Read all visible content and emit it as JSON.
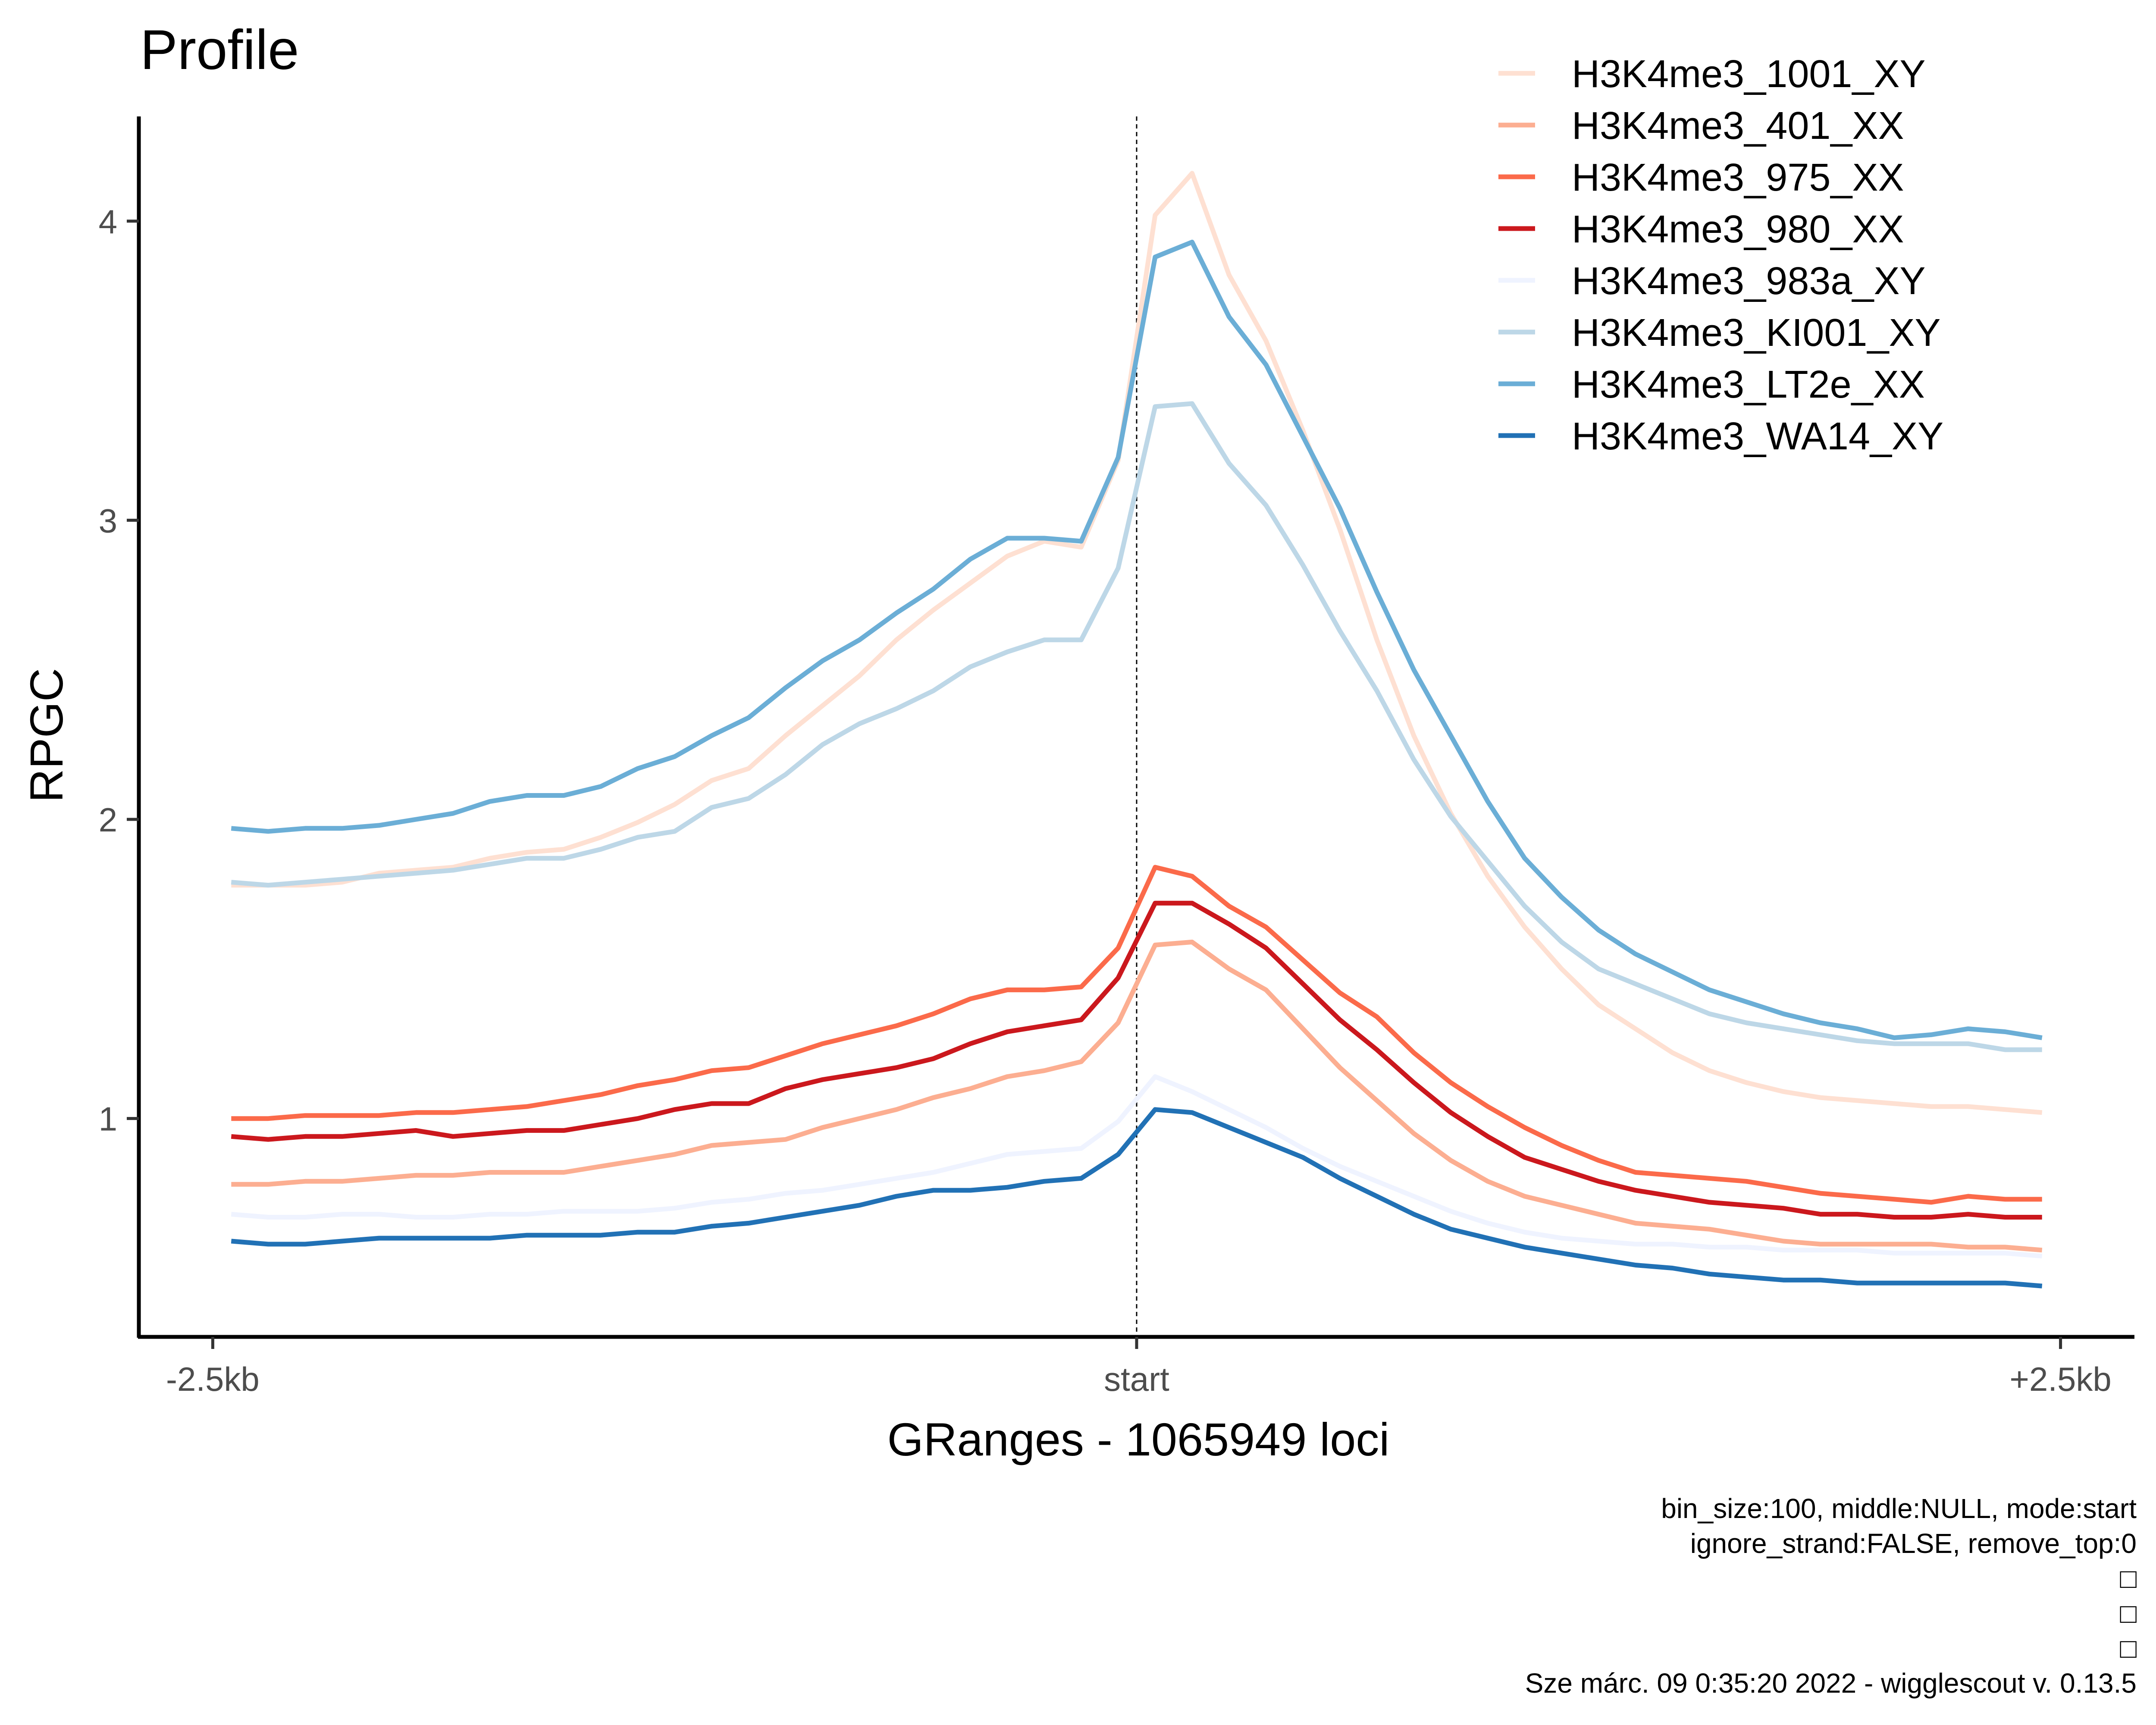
{
  "chart_data": {
    "type": "line",
    "title": "Profile",
    "xlabel": "GRanges - 1065949 loci",
    "ylabel": "RPGC",
    "x_tick_labels": [
      "-2.5kb",
      "start",
      "+2.5kb"
    ],
    "x_tick_values": [
      -2500,
      0,
      2500
    ],
    "y_tick_labels": [
      "1",
      "2",
      "3",
      "4"
    ],
    "y_tick_values": [
      1,
      2,
      3,
      4
    ],
    "xlim": [
      -2700,
      2700
    ],
    "ylim": [
      0.27,
      4.35
    ],
    "reference_line_x": 0,
    "grid": false,
    "legend_position": "top-right",
    "x": [
      -2450,
      -2350,
      -2250,
      -2150,
      -2050,
      -1950,
      -1850,
      -1750,
      -1650,
      -1550,
      -1450,
      -1350,
      -1250,
      -1150,
      -1050,
      -950,
      -850,
      -750,
      -650,
      -550,
      -450,
      -350,
      -250,
      -150,
      -50,
      50,
      150,
      250,
      350,
      450,
      550,
      650,
      750,
      850,
      950,
      1050,
      1150,
      1250,
      1350,
      1450,
      1550,
      1650,
      1750,
      1850,
      1950,
      2050,
      2150,
      2250,
      2350,
      2450
    ],
    "series": [
      {
        "name": "H3K4me3_1001_XY",
        "color": "#fee0d2",
        "values": [
          1.78,
          1.78,
          1.78,
          1.79,
          1.82,
          1.83,
          1.84,
          1.87,
          1.89,
          1.9,
          1.94,
          1.99,
          2.05,
          2.13,
          2.17,
          2.28,
          2.38,
          2.48,
          2.6,
          2.7,
          2.79,
          2.88,
          2.93,
          2.91,
          3.2,
          4.02,
          4.16,
          3.82,
          3.6,
          3.3,
          2.97,
          2.6,
          2.28,
          2.02,
          1.81,
          1.64,
          1.5,
          1.38,
          1.3,
          1.22,
          1.16,
          1.12,
          1.09,
          1.07,
          1.06,
          1.05,
          1.04,
          1.04,
          1.03,
          1.02
        ]
      },
      {
        "name": "H3K4me3_401_XX",
        "color": "#fcae91",
        "values": [
          0.78,
          0.78,
          0.79,
          0.79,
          0.8,
          0.81,
          0.81,
          0.82,
          0.82,
          0.82,
          0.84,
          0.86,
          0.88,
          0.91,
          0.92,
          0.93,
          0.97,
          1.0,
          1.03,
          1.07,
          1.1,
          1.14,
          1.16,
          1.19,
          1.32,
          1.58,
          1.59,
          1.5,
          1.43,
          1.3,
          1.17,
          1.06,
          0.95,
          0.86,
          0.79,
          0.74,
          0.71,
          0.68,
          0.65,
          0.64,
          0.63,
          0.61,
          0.59,
          0.58,
          0.58,
          0.58,
          0.58,
          0.57,
          0.57,
          0.56
        ]
      },
      {
        "name": "H3K4me3_975_XX",
        "color": "#fb6a4a",
        "values": [
          1.0,
          1.0,
          1.01,
          1.01,
          1.01,
          1.02,
          1.02,
          1.03,
          1.04,
          1.06,
          1.08,
          1.11,
          1.13,
          1.16,
          1.17,
          1.21,
          1.25,
          1.28,
          1.31,
          1.35,
          1.4,
          1.43,
          1.43,
          1.44,
          1.57,
          1.84,
          1.81,
          1.71,
          1.64,
          1.53,
          1.42,
          1.34,
          1.22,
          1.12,
          1.04,
          0.97,
          0.91,
          0.86,
          0.82,
          0.81,
          0.8,
          0.79,
          0.77,
          0.75,
          0.74,
          0.73,
          0.72,
          0.74,
          0.73,
          0.73
        ]
      },
      {
        "name": "H3K4me3_980_XX",
        "color": "#cb181d",
        "values": [
          0.94,
          0.93,
          0.94,
          0.94,
          0.95,
          0.96,
          0.94,
          0.95,
          0.96,
          0.96,
          0.98,
          1.0,
          1.03,
          1.05,
          1.05,
          1.1,
          1.13,
          1.15,
          1.17,
          1.2,
          1.25,
          1.29,
          1.31,
          1.33,
          1.47,
          1.72,
          1.72,
          1.65,
          1.57,
          1.45,
          1.33,
          1.23,
          1.12,
          1.02,
          0.94,
          0.87,
          0.83,
          0.79,
          0.76,
          0.74,
          0.72,
          0.71,
          0.7,
          0.68,
          0.68,
          0.67,
          0.67,
          0.68,
          0.67,
          0.67
        ]
      },
      {
        "name": "H3K4me3_983a_XY",
        "color": "#eff3ff",
        "values": [
          0.68,
          0.67,
          0.67,
          0.68,
          0.68,
          0.67,
          0.67,
          0.68,
          0.68,
          0.69,
          0.69,
          0.69,
          0.7,
          0.72,
          0.73,
          0.75,
          0.76,
          0.78,
          0.8,
          0.82,
          0.85,
          0.88,
          0.89,
          0.9,
          0.99,
          1.14,
          1.09,
          1.03,
          0.97,
          0.9,
          0.84,
          0.79,
          0.74,
          0.69,
          0.65,
          0.62,
          0.6,
          0.59,
          0.58,
          0.58,
          0.57,
          0.57,
          0.56,
          0.56,
          0.56,
          0.55,
          0.55,
          0.55,
          0.55,
          0.54
        ]
      },
      {
        "name": "H3K4me3_KI001_XY",
        "color": "#bdd7e7",
        "values": [
          1.79,
          1.78,
          1.79,
          1.8,
          1.81,
          1.82,
          1.83,
          1.85,
          1.87,
          1.87,
          1.9,
          1.94,
          1.96,
          2.04,
          2.07,
          2.15,
          2.25,
          2.32,
          2.37,
          2.43,
          2.51,
          2.56,
          2.6,
          2.6,
          2.84,
          3.38,
          3.39,
          3.19,
          3.05,
          2.85,
          2.63,
          2.43,
          2.2,
          2.01,
          1.86,
          1.71,
          1.59,
          1.5,
          1.45,
          1.4,
          1.35,
          1.32,
          1.3,
          1.28,
          1.26,
          1.25,
          1.25,
          1.25,
          1.23,
          1.23
        ]
      },
      {
        "name": "H3K4me3_LT2e_XX",
        "color": "#6baed6",
        "values": [
          1.97,
          1.96,
          1.97,
          1.97,
          1.98,
          2.0,
          2.02,
          2.06,
          2.08,
          2.08,
          2.11,
          2.17,
          2.21,
          2.28,
          2.34,
          2.44,
          2.53,
          2.6,
          2.69,
          2.77,
          2.87,
          2.94,
          2.94,
          2.93,
          3.21,
          3.88,
          3.93,
          3.68,
          3.52,
          3.28,
          3.04,
          2.76,
          2.5,
          2.28,
          2.06,
          1.87,
          1.74,
          1.63,
          1.55,
          1.49,
          1.43,
          1.39,
          1.35,
          1.32,
          1.3,
          1.27,
          1.28,
          1.3,
          1.29,
          1.27
        ]
      },
      {
        "name": "H3K4me3_WA14_XY",
        "color": "#2171b5",
        "values": [
          0.59,
          0.58,
          0.58,
          0.59,
          0.6,
          0.6,
          0.6,
          0.6,
          0.61,
          0.61,
          0.61,
          0.62,
          0.62,
          0.64,
          0.65,
          0.67,
          0.69,
          0.71,
          0.74,
          0.76,
          0.76,
          0.77,
          0.79,
          0.8,
          0.88,
          1.03,
          1.02,
          0.97,
          0.92,
          0.87,
          0.8,
          0.74,
          0.68,
          0.63,
          0.6,
          0.57,
          0.55,
          0.53,
          0.51,
          0.5,
          0.48,
          0.47,
          0.46,
          0.46,
          0.45,
          0.45,
          0.45,
          0.45,
          0.45,
          0.44
        ]
      }
    ]
  },
  "caption": {
    "lines": [
      "bin_size:100, middle:NULL, mode:start",
      "ignore_strand:FALSE, remove_top:0",
      "□",
      "□",
      "□",
      "Sze márc. 09 0:35:20 2022 - wigglescout v. 0.13.5"
    ]
  }
}
